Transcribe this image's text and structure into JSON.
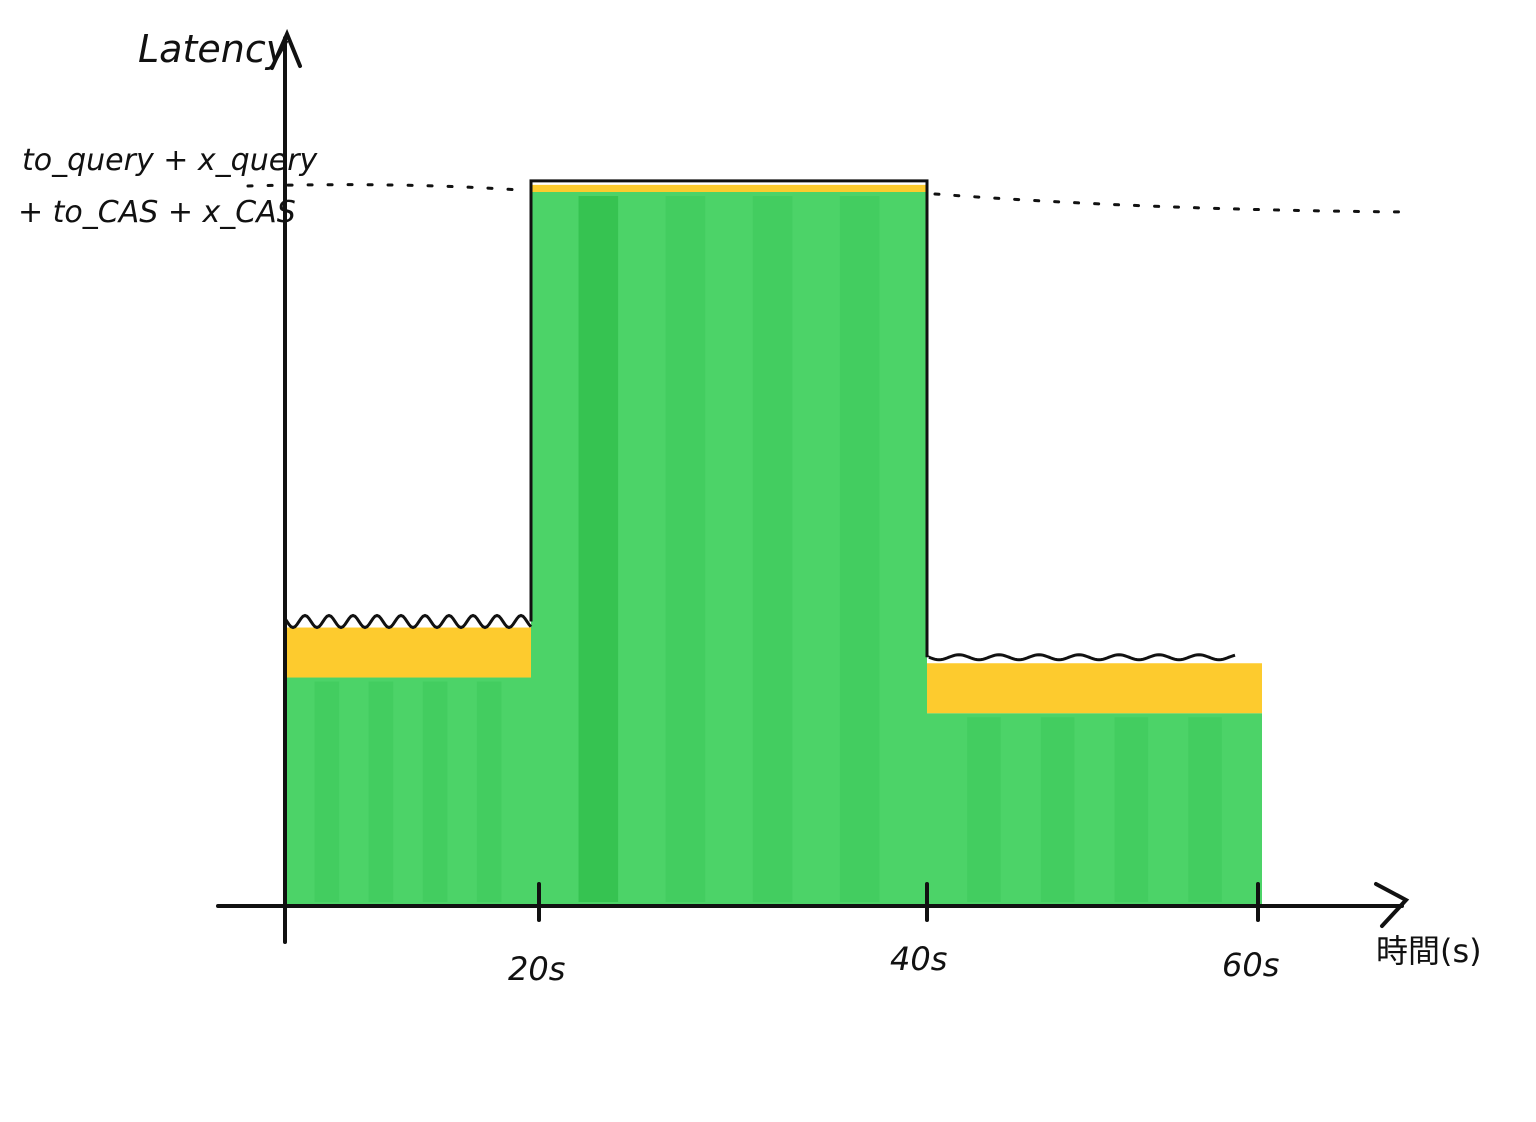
{
  "chart_data": {
    "type": "area",
    "title": "",
    "xlabel": "時間(s)",
    "ylabel": "Latency",
    "x_ticks": [
      "20s",
      "40s",
      "60s"
    ],
    "x_range": [
      0,
      60
    ],
    "threshold_label_line1": "to_query + x_query",
    "threshold_label_line2": "+ to_CAS + x_CAS",
    "threshold_value": 1.0,
    "grid": false,
    "series": [
      {
        "x_start": [
          0,
          20,
          40
        ],
        "x_end": [
          20,
          40,
          60
        ],
        "values": [
          0.32,
          1.0,
          0.27
        ]
      },
      {
        "x_start": [
          0,
          20,
          40
        ],
        "x_end": [
          20,
          40,
          60
        ],
        "values": [
          0.07,
          0.01,
          0.07
        ]
      }
    ],
    "colors": {
      "base": "#4cd368",
      "base_dark": "#2fbe4a",
      "overhead": "#fdcb2e",
      "line": "#111111"
    }
  }
}
